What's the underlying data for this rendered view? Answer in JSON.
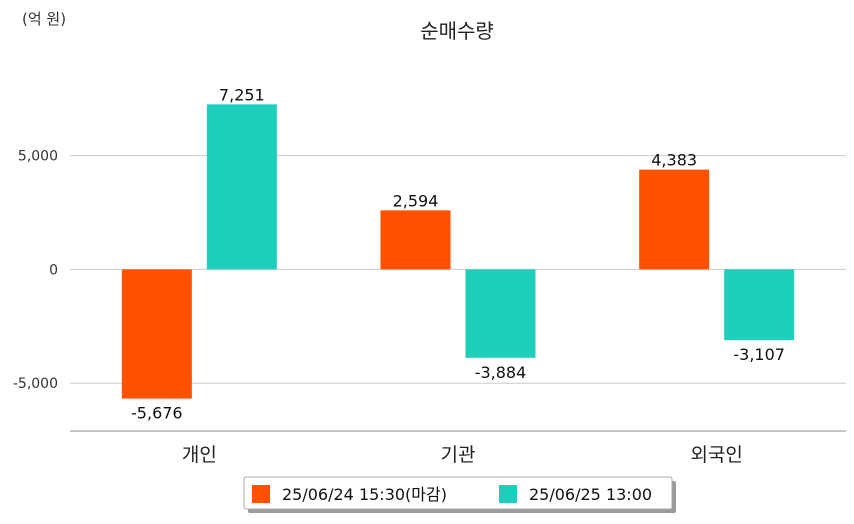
{
  "chart_data": {
    "type": "bar",
    "title": "순매수량",
    "unit_label": "(억 원)",
    "categories": [
      "개인",
      "기관",
      "외국인"
    ],
    "series": [
      {
        "name": "25/06/24 15:30(마감)",
        "color": "#FF5100",
        "values": [
          -5676,
          2594,
          4383
        ],
        "labels": [
          "-5,676",
          "2,594",
          "4,383"
        ]
      },
      {
        "name": "25/06/25 13:00",
        "color": "#1ECFBC",
        "values": [
          7251,
          -3884,
          -3107
        ],
        "labels": [
          "7,251",
          "-3,884",
          "-3,107"
        ]
      }
    ],
    "yticks": [
      -5000,
      0,
      5000
    ],
    "ytick_labels": [
      "-5,000",
      "0",
      "5,000"
    ],
    "ylim": [
      -7100,
      9200
    ],
    "grid": true,
    "legend_position": "bottom"
  }
}
